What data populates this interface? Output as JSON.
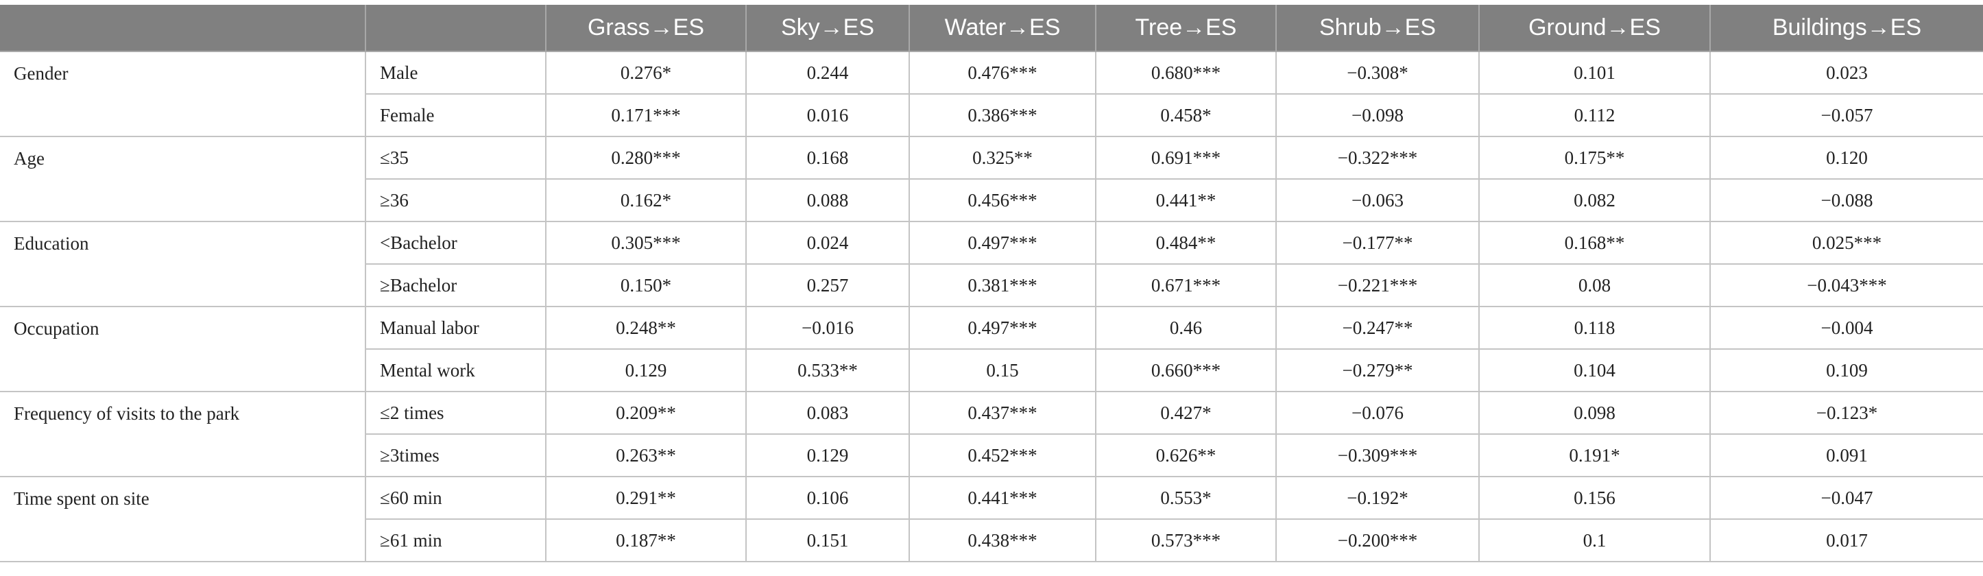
{
  "table": {
    "columns": [
      "",
      "",
      "Grass→ES",
      "Sky→ES",
      "Water→ES",
      "Tree→ES",
      "Shrub→ES",
      "Ground→ES",
      "Buildings→ES"
    ],
    "groups": [
      {
        "label": "Gender",
        "rows": [
          {
            "sub": "Male",
            "values": [
              "0.276*",
              "0.244",
              "0.476***",
              "0.680***",
              "−0.308*",
              "0.101",
              "0.023"
            ]
          },
          {
            "sub": "Female",
            "values": [
              "0.171***",
              "0.016",
              "0.386***",
              "0.458*",
              "−0.098",
              "0.112",
              "−0.057"
            ]
          }
        ]
      },
      {
        "label": "Age",
        "rows": [
          {
            "sub": "≤35",
            "values": [
              "0.280***",
              "0.168",
              "0.325**",
              "0.691***",
              "−0.322***",
              "0.175**",
              "0.120"
            ]
          },
          {
            "sub": "≥36",
            "values": [
              "0.162*",
              "0.088",
              "0.456***",
              "0.441**",
              "−0.063",
              "0.082",
              "−0.088"
            ]
          }
        ]
      },
      {
        "label": "Education",
        "rows": [
          {
            "sub": "<Bachelor",
            "values": [
              "0.305***",
              "0.024",
              "0.497***",
              "0.484**",
              "−0.177**",
              "0.168**",
              "0.025***"
            ]
          },
          {
            "sub": "≥Bachelor",
            "values": [
              "0.150*",
              "0.257",
              "0.381***",
              "0.671***",
              "−0.221***",
              "0.08",
              "−0.043***"
            ]
          }
        ]
      },
      {
        "label": "Occupation",
        "rows": [
          {
            "sub": "Manual labor",
            "values": [
              "0.248**",
              "−0.016",
              "0.497***",
              "0.46",
              "−0.247**",
              "0.118",
              "−0.004"
            ]
          },
          {
            "sub": "Mental work",
            "values": [
              "0.129",
              "0.533**",
              "0.15",
              "0.660***",
              "−0.279**",
              "0.104",
              "0.109"
            ]
          }
        ]
      },
      {
        "label": "Frequency of visits to the park",
        "rows": [
          {
            "sub": "≤2 times",
            "values": [
              "0.209**",
              "0.083",
              "0.437***",
              "0.427*",
              "−0.076",
              "0.098",
              "−0.123*"
            ]
          },
          {
            "sub": "≥3times",
            "values": [
              "0.263**",
              "0.129",
              "0.452***",
              "0.626**",
              "−0.309***",
              "0.191*",
              "0.091"
            ]
          }
        ]
      },
      {
        "label": "Time spent on site",
        "rows": [
          {
            "sub": "≤60 min",
            "values": [
              "0.291**",
              "0.106",
              "0.441***",
              "0.553*",
              "−0.192*",
              "0.156",
              "−0.047"
            ]
          },
          {
            "sub": "≥61 min",
            "values": [
              "0.187**",
              "0.151",
              "0.438***",
              "0.573***",
              "−0.200***",
              "0.1",
              "0.017"
            ]
          }
        ]
      }
    ]
  }
}
